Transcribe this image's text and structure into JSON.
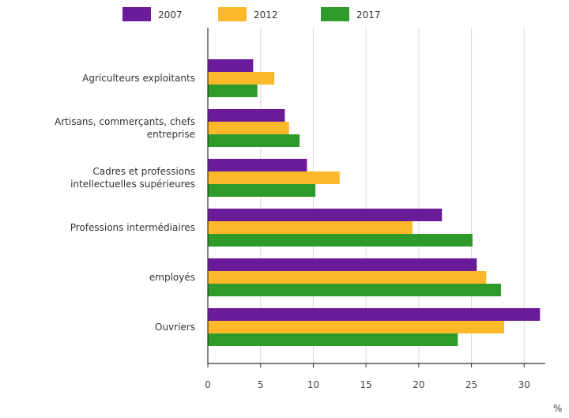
{
  "chart_data": {
    "type": "bar",
    "orientation": "horizontal",
    "categories": [
      "Agriculteurs exploitants",
      "Artisans, commerçants, chefs entreprise",
      "Cadres et professions intellectuelles supérieures",
      "Professions intermédiaires",
      "employés",
      "Ouvriers"
    ],
    "category_lines": [
      [
        "Agriculteurs exploitants"
      ],
      [
        "Artisans, commerçants, chefs",
        "entreprise"
      ],
      [
        "Cadres et professions",
        "intellectuelles supérieures"
      ],
      [
        "Professions intermédiaires"
      ],
      [
        "employés"
      ],
      [
        "Ouvriers"
      ]
    ],
    "series": [
      {
        "name": "2007",
        "color": "#6a1b9a",
        "values": [
          4.3,
          7.3,
          9.4,
          22.2,
          25.5,
          31.5
        ]
      },
      {
        "name": "2012",
        "color": "#fbb829",
        "values": [
          6.3,
          7.7,
          12.5,
          19.4,
          26.4,
          28.1
        ]
      },
      {
        "name": "2017",
        "color": "#2e9a2a",
        "values": [
          4.7,
          8.7,
          10.2,
          25.1,
          27.8,
          23.7
        ]
      }
    ],
    "xlim": [
      0,
      32
    ],
    "xticks": [
      0,
      5,
      10,
      15,
      20,
      25,
      30
    ],
    "unit": "%",
    "grid": true,
    "legend_position": "top"
  }
}
